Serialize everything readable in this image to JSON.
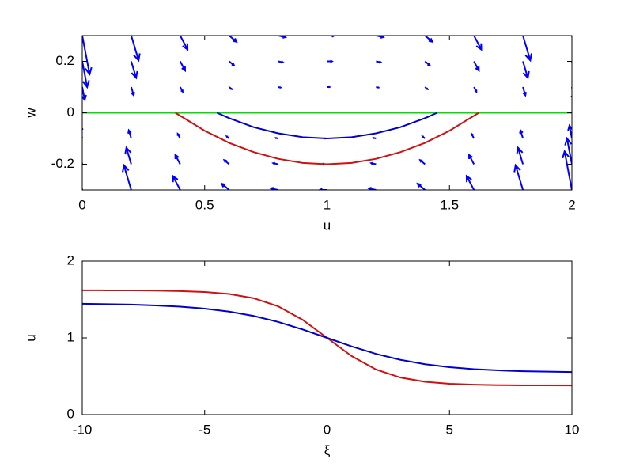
{
  "chart_data": [
    {
      "type": "quiver",
      "xlabel": "u",
      "ylabel": "w",
      "xlim": [
        0,
        2
      ],
      "xticks": [
        0,
        0.5,
        1,
        1.5,
        2
      ],
      "ylim": [
        -0.3,
        0.3
      ],
      "yticks": [
        -0.2,
        0,
        0.2
      ],
      "quiver": {
        "color": "#0000ff",
        "x": [
          0,
          0.2,
          0.4,
          0.6,
          0.8,
          1,
          1.2,
          1.4,
          1.6,
          1.8,
          2,
          0,
          0.2,
          0.4,
          0.6,
          0.8,
          1,
          1.2,
          1.4,
          1.6,
          1.8,
          2,
          0,
          0.2,
          0.4,
          0.6,
          0.8,
          1,
          1.2,
          1.4,
          1.6,
          1.8,
          2,
          0,
          0.2,
          0.4,
          0.6,
          0.8,
          1,
          1.2,
          1.4,
          1.6,
          1.8,
          2,
          0,
          0.2,
          0.4,
          0.6,
          0.8,
          1,
          1.2,
          1.4,
          1.6,
          1.8,
          2,
          0,
          0.2,
          0.4,
          0.6,
          0.8,
          1,
          1.2,
          1.4,
          1.6,
          1.8,
          2
        ],
        "y": [
          0.3,
          0.3,
          0.3,
          0.3,
          0.3,
          0.3,
          0.3,
          0.3,
          0.3,
          0.3,
          0.3,
          0.2,
          0.2,
          0.2,
          0.2,
          0.2,
          0.2,
          0.2,
          0.2,
          0.2,
          0.2,
          0.2,
          0.1,
          0.1,
          0.1,
          0.1,
          0.1,
          0.1,
          0.1,
          0.1,
          0.1,
          0.1,
          0.1,
          -0.1,
          -0.1,
          -0.1,
          -0.1,
          -0.1,
          -0.1,
          -0.1,
          -0.1,
          -0.1,
          -0.1,
          -0.1,
          -0.2,
          -0.2,
          -0.2,
          -0.2,
          -0.2,
          -0.2,
          -0.2,
          -0.2,
          -0.2,
          -0.2,
          -0.2,
          -0.3,
          -0.3,
          -0.3,
          -0.3,
          -0.3,
          -0.3,
          -0.3,
          -0.3,
          -0.3,
          -0.3,
          -0.3
        ],
        "u": [
          0.3,
          0.3,
          0.3,
          0.3,
          0.3,
          0.3,
          0.3,
          0.3,
          0.3,
          0.3,
          0.3,
          0.2,
          0.2,
          0.2,
          0.2,
          0.2,
          0.2,
          0.2,
          0.2,
          0.2,
          0.2,
          0.2,
          0.1,
          0.1,
          0.1,
          0.1,
          0.1,
          0.1,
          0.1,
          0.1,
          0.1,
          0.1,
          0.1,
          -0.1,
          -0.1,
          -0.1,
          -0.1,
          -0.1,
          -0.1,
          -0.1,
          -0.1,
          -0.1,
          -0.1,
          -0.1,
          -0.2,
          -0.2,
          -0.2,
          -0.2,
          -0.2,
          -0.2,
          -0.2,
          -0.2,
          -0.2,
          -0.2,
          -0.2,
          -0.3,
          -0.3,
          -0.3,
          -0.3,
          -0.3,
          -0.3,
          -0.3,
          -0.3,
          -0.3,
          -0.3,
          -0.3
        ],
        "v": [
          -1.5,
          -0.96,
          -0.54,
          -0.24,
          -0.06,
          0,
          -0.06,
          -0.24,
          -0.54,
          -0.96,
          -1.5,
          -1,
          -0.64,
          -0.36,
          -0.16,
          -0.04,
          0,
          -0.04,
          -0.16,
          -0.36,
          -0.64,
          -1,
          -0.5,
          -0.32,
          -0.18,
          -0.08,
          -0.02,
          0,
          -0.02,
          -0.08,
          -0.18,
          -0.32,
          -0.5,
          0.5,
          0.32,
          0.18,
          0.08,
          0.02,
          0,
          0.02,
          0.08,
          0.18,
          0.32,
          0.5,
          1,
          0.64,
          0.36,
          0.16,
          0.04,
          0,
          0.04,
          0.16,
          0.36,
          0.64,
          1,
          1.5,
          0.96,
          0.54,
          0.24,
          0.06,
          0,
          0.06,
          0.24,
          0.54,
          0.96,
          1.5
        ]
      },
      "series": [
        {
          "color": "#00e000",
          "x": [
            0,
            2
          ],
          "values": [
            0,
            0
          ]
        },
        {
          "color": "#d01010",
          "x": [
            0.38,
            0.5,
            0.6,
            0.7,
            0.8,
            0.9,
            1,
            1.1,
            1.2,
            1.3,
            1.4,
            1.5,
            1.62
          ],
          "values": [
            0,
            -0.07,
            -0.117,
            -0.153,
            -0.179,
            -0.195,
            -0.2,
            -0.195,
            -0.179,
            -0.153,
            -0.117,
            -0.07,
            0
          ]
        },
        {
          "color": "#0000d0",
          "x": [
            0.55,
            0.6,
            0.7,
            0.8,
            0.9,
            1,
            1.1,
            1.2,
            1.3,
            1.4,
            1.45
          ],
          "values": [
            0,
            -0.021,
            -0.056,
            -0.08,
            -0.095,
            -0.1,
            -0.095,
            -0.08,
            -0.056,
            -0.021,
            0
          ]
        }
      ]
    },
    {
      "type": "line",
      "xlabel": "ξ",
      "ylabel": "u",
      "xlim": [
        -10,
        10
      ],
      "xticks": [
        -10,
        -5,
        0,
        5,
        10
      ],
      "ylim": [
        0,
        2
      ],
      "yticks": [
        0,
        1,
        2
      ],
      "x": [
        -10,
        -9,
        -8,
        -7,
        -6,
        -5,
        -4,
        -3,
        -2,
        -1,
        0,
        1,
        2,
        3,
        4,
        5,
        6,
        7,
        8,
        9,
        10
      ],
      "series": [
        {
          "color": "#d01010",
          "values": [
            1.62,
            1.619,
            1.618,
            1.616,
            1.61,
            1.598,
            1.572,
            1.517,
            1.412,
            1.236,
            1,
            0.764,
            0.588,
            0.483,
            0.428,
            0.402,
            0.39,
            0.384,
            0.382,
            0.381,
            0.38
          ]
        },
        {
          "color": "#0000d0",
          "values": [
            1.444,
            1.44,
            1.434,
            1.423,
            1.407,
            1.382,
            1.343,
            1.286,
            1.208,
            1.11,
            1,
            0.89,
            0.792,
            0.714,
            0.657,
            0.618,
            0.593,
            0.577,
            0.566,
            0.56,
            0.556
          ]
        }
      ]
    }
  ]
}
